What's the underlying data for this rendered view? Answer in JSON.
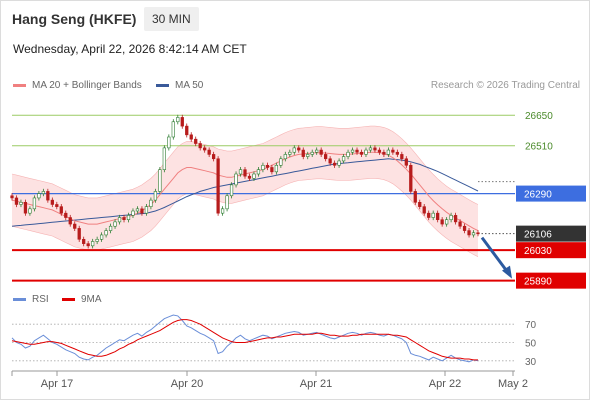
{
  "header": {
    "title": "Hang Seng (HKFE)",
    "interval": "30 MIN",
    "datetime": "Wednesday, April 22, 2026 8:42:14 AM CET"
  },
  "legend": {
    "ma20": "MA 20 + Bollinger Bands",
    "ma50": "MA 50",
    "rsi": "RSI",
    "ma9": "9MA",
    "copyright": "Research © 2026 Trading Central"
  },
  "colors": {
    "ma20": "#f08080",
    "ma50": "#3a5a9a",
    "band_fill": "#fde2e2",
    "resistance": "#9ccc65",
    "pivot": "#3d6ee0",
    "support": "#e00000",
    "last": "#333333",
    "up": "#2e7d32",
    "down": "#b71c1c",
    "arrow": "#2c5aa0",
    "rsi": "#6a8ed8",
    "rsi_ma": "#e00000"
  },
  "chart_data": [
    {
      "type": "line",
      "title": "Hang Seng (HKFE) 30 MIN",
      "x_tick_labels": [
        "Apr 17",
        "Apr 20",
        "Apr 21",
        "Apr 22",
        "May 2"
      ],
      "ylim": [
        25870,
        26720
      ],
      "levels": [
        {
          "value": 26650,
          "label": "26650",
          "kind": "resistance"
        },
        {
          "value": 26510,
          "label": "26510",
          "kind": "resistance"
        },
        {
          "value": 26290,
          "label": "26290",
          "kind": "pivot"
        },
        {
          "value": 26106,
          "label": "26106",
          "kind": "last"
        },
        {
          "value": 26030,
          "label": "26030",
          "kind": "support"
        },
        {
          "value": 25890,
          "label": "25890",
          "kind": "support"
        }
      ],
      "close": [
        26270,
        26240,
        26250,
        26200,
        26220,
        26270,
        26290,
        26300,
        26260,
        26240,
        26230,
        26200,
        26180,
        26150,
        26130,
        26080,
        26060,
        26050,
        26070,
        26080,
        26100,
        26120,
        26140,
        26160,
        26180,
        26170,
        26190,
        26210,
        26220,
        26200,
        26230,
        26260,
        26300,
        26400,
        26500,
        26550,
        26620,
        26640,
        26600,
        26560,
        26540,
        26520,
        26500,
        26490,
        26470,
        26450,
        26200,
        26220,
        26280,
        26330,
        26380,
        26400,
        26370,
        26360,
        26380,
        26400,
        26420,
        26410,
        26390,
        26420,
        26450,
        26470,
        26480,
        26500,
        26490,
        26460,
        26470,
        26480,
        26490,
        26470,
        26450,
        26430,
        26420,
        26440,
        26460,
        26480,
        26490,
        26480,
        26470,
        26490,
        26500,
        26490,
        26480,
        26470,
        26490,
        26480,
        26470,
        26450,
        26420,
        26300,
        26250,
        26230,
        26200,
        26180,
        26200,
        26170,
        26150,
        26170,
        26190,
        26160,
        26140,
        26120,
        26100,
        26110,
        26106
      ],
      "ma20": [
        26260,
        26255,
        26250,
        26245,
        26240,
        26235,
        26230,
        26225,
        26220,
        26215,
        26205,
        26195,
        26185,
        26175,
        26165,
        26160,
        26155,
        26150,
        26150,
        26150,
        26155,
        26160,
        26165,
        26170,
        26175,
        26180,
        26185,
        26190,
        26200,
        26210,
        26225,
        26240,
        26260,
        26285,
        26310,
        26335,
        26360,
        26385,
        26400,
        26410,
        26410,
        26405,
        26400,
        26395,
        26390,
        26385,
        26375,
        26370,
        26365,
        26365,
        26370,
        26375,
        26380,
        26385,
        26390,
        26395,
        26400,
        26410,
        26420,
        26430,
        26440,
        26450,
        26458,
        26465,
        26470,
        26472,
        26474,
        26476,
        26478,
        26478,
        26476,
        26474,
        26472,
        26470,
        26470,
        26470,
        26472,
        26474,
        26476,
        26478,
        26480,
        26480,
        26478,
        26474,
        26466,
        26455,
        26440,
        26422,
        26402,
        26380,
        26355,
        26330,
        26305,
        26280,
        26258,
        26238,
        26220,
        26204,
        26190,
        26178,
        26166,
        26154,
        26142,
        26130,
        26120
      ],
      "ma50": [
        26140,
        26142,
        26144,
        26146,
        26148,
        26150,
        26152,
        26154,
        26156,
        26158,
        26160,
        26162,
        26164,
        26166,
        26168,
        26170,
        26172,
        26174,
        26176,
        26178,
        26180,
        26182,
        26184,
        26186,
        26188,
        26190,
        26192,
        26194,
        26196,
        26198,
        26200,
        26205,
        26210,
        26218,
        26226,
        26236,
        26246,
        26256,
        26266,
        26276,
        26284,
        26292,
        26300,
        26306,
        26312,
        26318,
        26322,
        26326,
        26330,
        26334,
        26338,
        26342,
        26346,
        26350,
        26354,
        26358,
        26362,
        26366,
        26370,
        26374,
        26378,
        26382,
        26386,
        26390,
        26394,
        26398,
        26402,
        26406,
        26410,
        26414,
        26418,
        26422,
        26426,
        26428,
        26430,
        26432,
        26434,
        26436,
        26438,
        26440,
        26442,
        26444,
        26446,
        26448,
        26450,
        26448,
        26446,
        26444,
        26440,
        26436,
        26430,
        26424,
        26416,
        26408,
        26400,
        26392,
        26382,
        26372,
        26362,
        26352,
        26342,
        26332,
        26322,
        26312,
        26302
      ],
      "band_width": 120
    },
    {
      "type": "line",
      "title": "RSI",
      "y_tick_labels": [
        "70",
        "50",
        "30"
      ],
      "ylim": [
        20,
        80
      ],
      "series": [
        {
          "name": "RSI",
          "values": [
            55,
            50,
            48,
            44,
            46,
            52,
            55,
            58,
            54,
            50,
            48,
            45,
            42,
            40,
            38,
            34,
            32,
            31,
            34,
            36,
            40,
            44,
            47,
            50,
            53,
            52,
            55,
            58,
            60,
            57,
            61,
            64,
            68,
            72,
            76,
            78,
            80,
            79,
            74,
            68,
            66,
            63,
            60,
            58,
            55,
            52,
            38,
            40,
            46,
            50,
            55,
            58,
            54,
            52,
            54,
            56,
            58,
            57,
            54,
            56,
            58,
            60,
            61,
            62,
            61,
            58,
            59,
            60,
            61,
            59,
            57,
            55,
            54,
            56,
            58,
            60,
            61,
            60,
            58,
            60,
            61,
            60,
            58,
            57,
            59,
            58,
            56,
            54,
            50,
            38,
            36,
            35,
            33,
            31,
            34,
            32,
            30,
            33,
            36,
            33,
            31,
            30,
            29,
            31,
            30
          ]
        },
        {
          "name": "9MA",
          "values": [
            52,
            51,
            50,
            49,
            48,
            48,
            49,
            50,
            51,
            51,
            50,
            49,
            47,
            45,
            43,
            41,
            39,
            37,
            36,
            35,
            35,
            36,
            38,
            40,
            43,
            45,
            48,
            50,
            53,
            55,
            57,
            59,
            61,
            63,
            66,
            69,
            72,
            74,
            75,
            75,
            74,
            72,
            70,
            67,
            64,
            61,
            58,
            55,
            53,
            51,
            50,
            50,
            50,
            51,
            52,
            53,
            54,
            55,
            55,
            56,
            56,
            57,
            58,
            59,
            59,
            59,
            59,
            59,
            60,
            60,
            59,
            58,
            58,
            57,
            57,
            57,
            58,
            58,
            59,
            59,
            59,
            59,
            59,
            59,
            59,
            58,
            58,
            57,
            56,
            53,
            50,
            47,
            44,
            41,
            39,
            37,
            35,
            34,
            33,
            33,
            33,
            32,
            32,
            31,
            31
          ]
        }
      ]
    }
  ]
}
